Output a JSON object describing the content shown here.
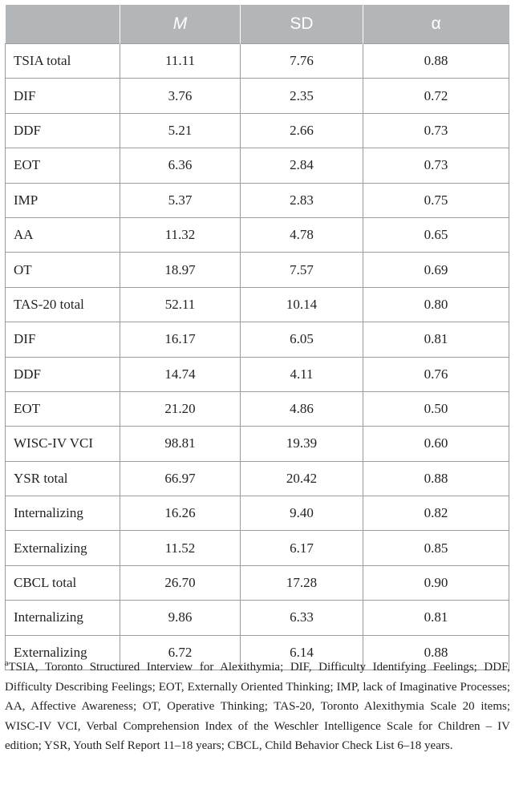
{
  "table": {
    "headers": [
      "",
      "M",
      "SD",
      "α"
    ],
    "rows": [
      [
        "TSIA total",
        "11.11",
        "7.76",
        "0.88"
      ],
      [
        "DIF",
        "3.76",
        "2.35",
        "0.72"
      ],
      [
        "DDF",
        "5.21",
        "2.66",
        "0.73"
      ],
      [
        "EOT",
        "6.36",
        "2.84",
        "0.73"
      ],
      [
        "IMP",
        "5.37",
        "2.83",
        "0.75"
      ],
      [
        "AA",
        "11.32",
        "4.78",
        "0.65"
      ],
      [
        "OT",
        "18.97",
        "7.57",
        "0.69"
      ],
      [
        "TAS-20 total",
        "52.11",
        "10.14",
        "0.80"
      ],
      [
        "DIF",
        "16.17",
        "6.05",
        "0.81"
      ],
      [
        "DDF",
        "14.74",
        "4.11",
        "0.76"
      ],
      [
        "EOT",
        "21.20",
        "4.86",
        "0.50"
      ],
      [
        "WISC-IV VCI",
        "98.81",
        "19.39",
        "0.60"
      ],
      [
        "YSR total",
        "66.97",
        "20.42",
        "0.88"
      ],
      [
        "Internalizing",
        "16.26",
        "9.40",
        "0.82"
      ],
      [
        "Externalizing",
        "11.52",
        "6.17",
        "0.85"
      ],
      [
        "CBCL total",
        "26.70",
        "17.28",
        "0.90"
      ],
      [
        "Internalizing",
        "9.86",
        "6.33",
        "0.81"
      ],
      [
        "Externalizing",
        "6.72",
        "6.14",
        "0.88"
      ]
    ]
  },
  "footnote": {
    "marker": "a",
    "text": "TSIA, Toronto Structured Interview for Alexithymia; DIF, Difficulty Identifying Feelings; DDF, Difficulty Describing Feelings; EOT, Externally Oriented Thinking; IMP, lack of Imaginative Processes; AA, Affective Awareness; OT, Operative Thinking; TAS-20, Toronto Alexithymia Scale 20 items; WISC-IV VCI, Verbal Comprehension Index of the Weschler Intelligence Scale for Children – IV edition; YSR, Youth Self Report 11–18 years; CBCL, Child Behavior Check List 6–18 years."
  }
}
